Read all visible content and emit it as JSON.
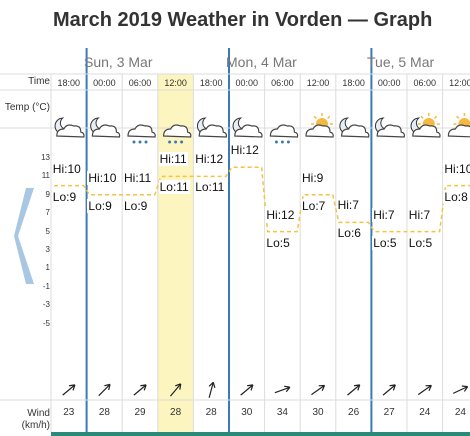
{
  "title": "March 2019 Weather in Vorden — Graph",
  "days": [
    "Sun, 3 Mar",
    "Mon, 4 Mar",
    "Tue, 5 Mar"
  ],
  "labels": {
    "time": "Time",
    "temp": "Temp (°C)",
    "wind": "Wind (km/h)"
  },
  "times": [
    "18:00",
    "00:00",
    "06:00",
    "12:00",
    "18:00",
    "00:00",
    "06:00",
    "12:00",
    "18:00",
    "00:00",
    "06:00",
    "12:00"
  ],
  "highlight_index": 3,
  "y_ticks": [
    "13",
    "11",
    "9",
    "7",
    "5",
    "3",
    "1",
    "-1",
    "-3",
    "-5"
  ],
  "icons": [
    "night-cloudy-icon",
    "night-cloudy-icon",
    "cloud-rain-icon",
    "cloud-rain-icon",
    "night-cloudy-icon",
    "night-cloudy-icon",
    "cloud-rain-icon",
    "sun-cloud-icon",
    "night-cloudy-icon",
    "night-cloudy-icon",
    "moon-sun-cloud-icon",
    "sun-cloud-icon"
  ],
  "hi_labels": [
    "Hi:10",
    "Hi:10",
    "Hi:11",
    "Hi:11",
    "Hi:12",
    "Hi:12",
    "Hi:12",
    "Hi:9",
    "Hi:7",
    "Hi:7",
    "Hi:7",
    "Hi:10"
  ],
  "lo_labels": [
    "Lo:9",
    "Lo:9",
    "Lo:9",
    "Lo:11",
    "Lo:11",
    "",
    "Lo:5",
    "Lo:7",
    "Lo:6",
    "Lo:5",
    "Lo:5",
    "Lo:8"
  ],
  "wind_speeds": [
    "23",
    "28",
    "29",
    "28",
    "28",
    "30",
    "34",
    "30",
    "26",
    "27",
    "24",
    "24"
  ],
  "chart_data": {
    "type": "line",
    "x": [
      "18:00",
      "00:00",
      "06:00",
      "12:00",
      "18:00",
      "00:00",
      "06:00",
      "12:00",
      "18:00",
      "00:00",
      "06:00",
      "12:00"
    ],
    "series": [
      {
        "values": [
          10,
          9,
          9,
          11,
          11,
          12,
          5,
          9,
          6,
          5,
          5,
          10
        ]
      }
    ],
    "ylim": [
      -6,
      14
    ],
    "accent_color": "#f5c242",
    "day_line_color": "#3a7ab8",
    "highlight_color": "#fcf5c0"
  }
}
